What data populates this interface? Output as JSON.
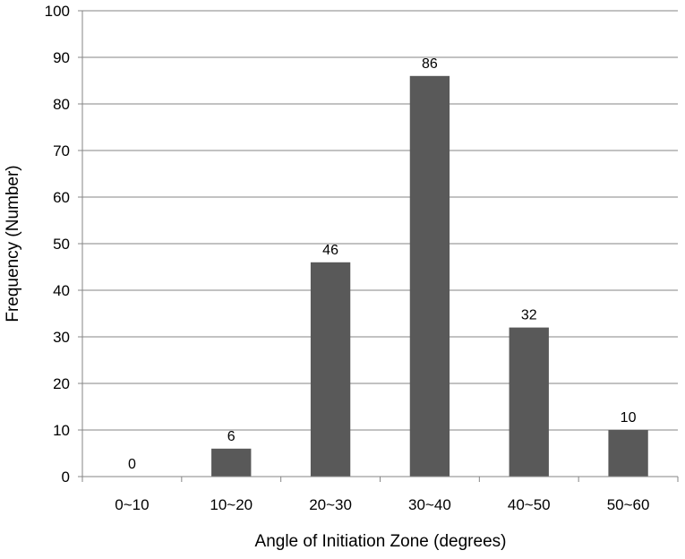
{
  "chart_data": {
    "type": "bar",
    "title": "",
    "xlabel": "Angle of Initiation Zone (degrees)",
    "ylabel": "Frequency (Number)",
    "categories": [
      "0~10",
      "10~20",
      "20~30",
      "30~40",
      "40~50",
      "50~60"
    ],
    "series": [
      {
        "values": [
          0,
          6,
          46,
          86,
          32,
          10
        ]
      }
    ],
    "data_labels": [
      "0",
      "6",
      "46",
      "86",
      "32",
      "10"
    ],
    "ylim": [
      0,
      100
    ],
    "yticks": [
      0,
      10,
      20,
      30,
      40,
      50,
      60,
      70,
      80,
      90,
      100
    ],
    "ytick_labels": [
      "0",
      "10",
      "20",
      "30",
      "40",
      "50",
      "60",
      "70",
      "80",
      "90",
      "100"
    ],
    "grid": "horizontal",
    "legend": "none",
    "bar_color": "#595959",
    "grid_color": "#868686"
  }
}
